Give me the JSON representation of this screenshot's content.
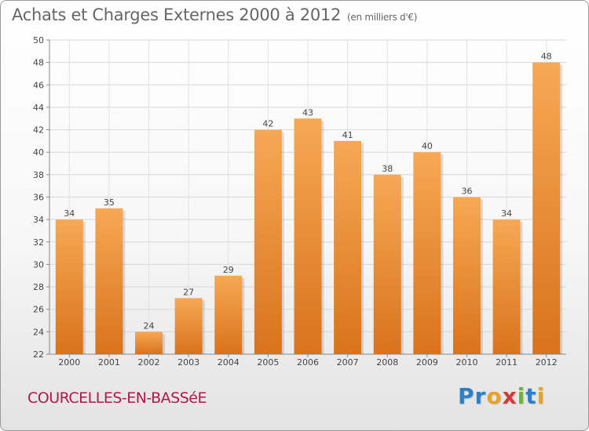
{
  "header": {
    "title": "Achats et Charges Externes 2000 à 2012",
    "unit": "(en milliers d'€)"
  },
  "footer": {
    "city": "COURCELLES-EN-BASSéE",
    "logo": "Proxiti",
    "logo_letters": [
      "P",
      "r",
      "o",
      "x",
      "i",
      "t",
      "i"
    ]
  },
  "colors": {
    "bar_light": "#f7a854",
    "bar_dark": "#d9731c",
    "city": "#b0184a",
    "title": "#666666"
  },
  "chart_data": {
    "type": "bar",
    "title": "Achats et Charges Externes 2000 à 2012",
    "categories": [
      "2000",
      "2001",
      "2002",
      "2003",
      "2004",
      "2005",
      "2006",
      "2007",
      "2008",
      "2009",
      "2010",
      "2011",
      "2012"
    ],
    "values": [
      34,
      35,
      24,
      27,
      29,
      42,
      43,
      41,
      38,
      40,
      36,
      34,
      48
    ],
    "ylim": [
      22,
      50
    ],
    "yticks": [
      22,
      24,
      26,
      28,
      30,
      32,
      34,
      36,
      38,
      40,
      42,
      44,
      46,
      48,
      50
    ],
    "grid": true,
    "data_labels": true
  }
}
